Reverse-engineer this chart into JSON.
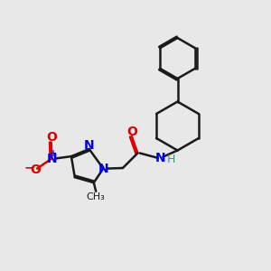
{
  "bg_color": "#e8e8e8",
  "black": "#1a1a1a",
  "blue": "#0000ee",
  "red": "#dd0000",
  "teal": "#4a9090",
  "lw": 1.8,
  "xlim": [
    0,
    10
  ],
  "ylim": [
    0,
    10
  ],
  "figsize": [
    3.0,
    3.0
  ],
  "dpi": 100
}
